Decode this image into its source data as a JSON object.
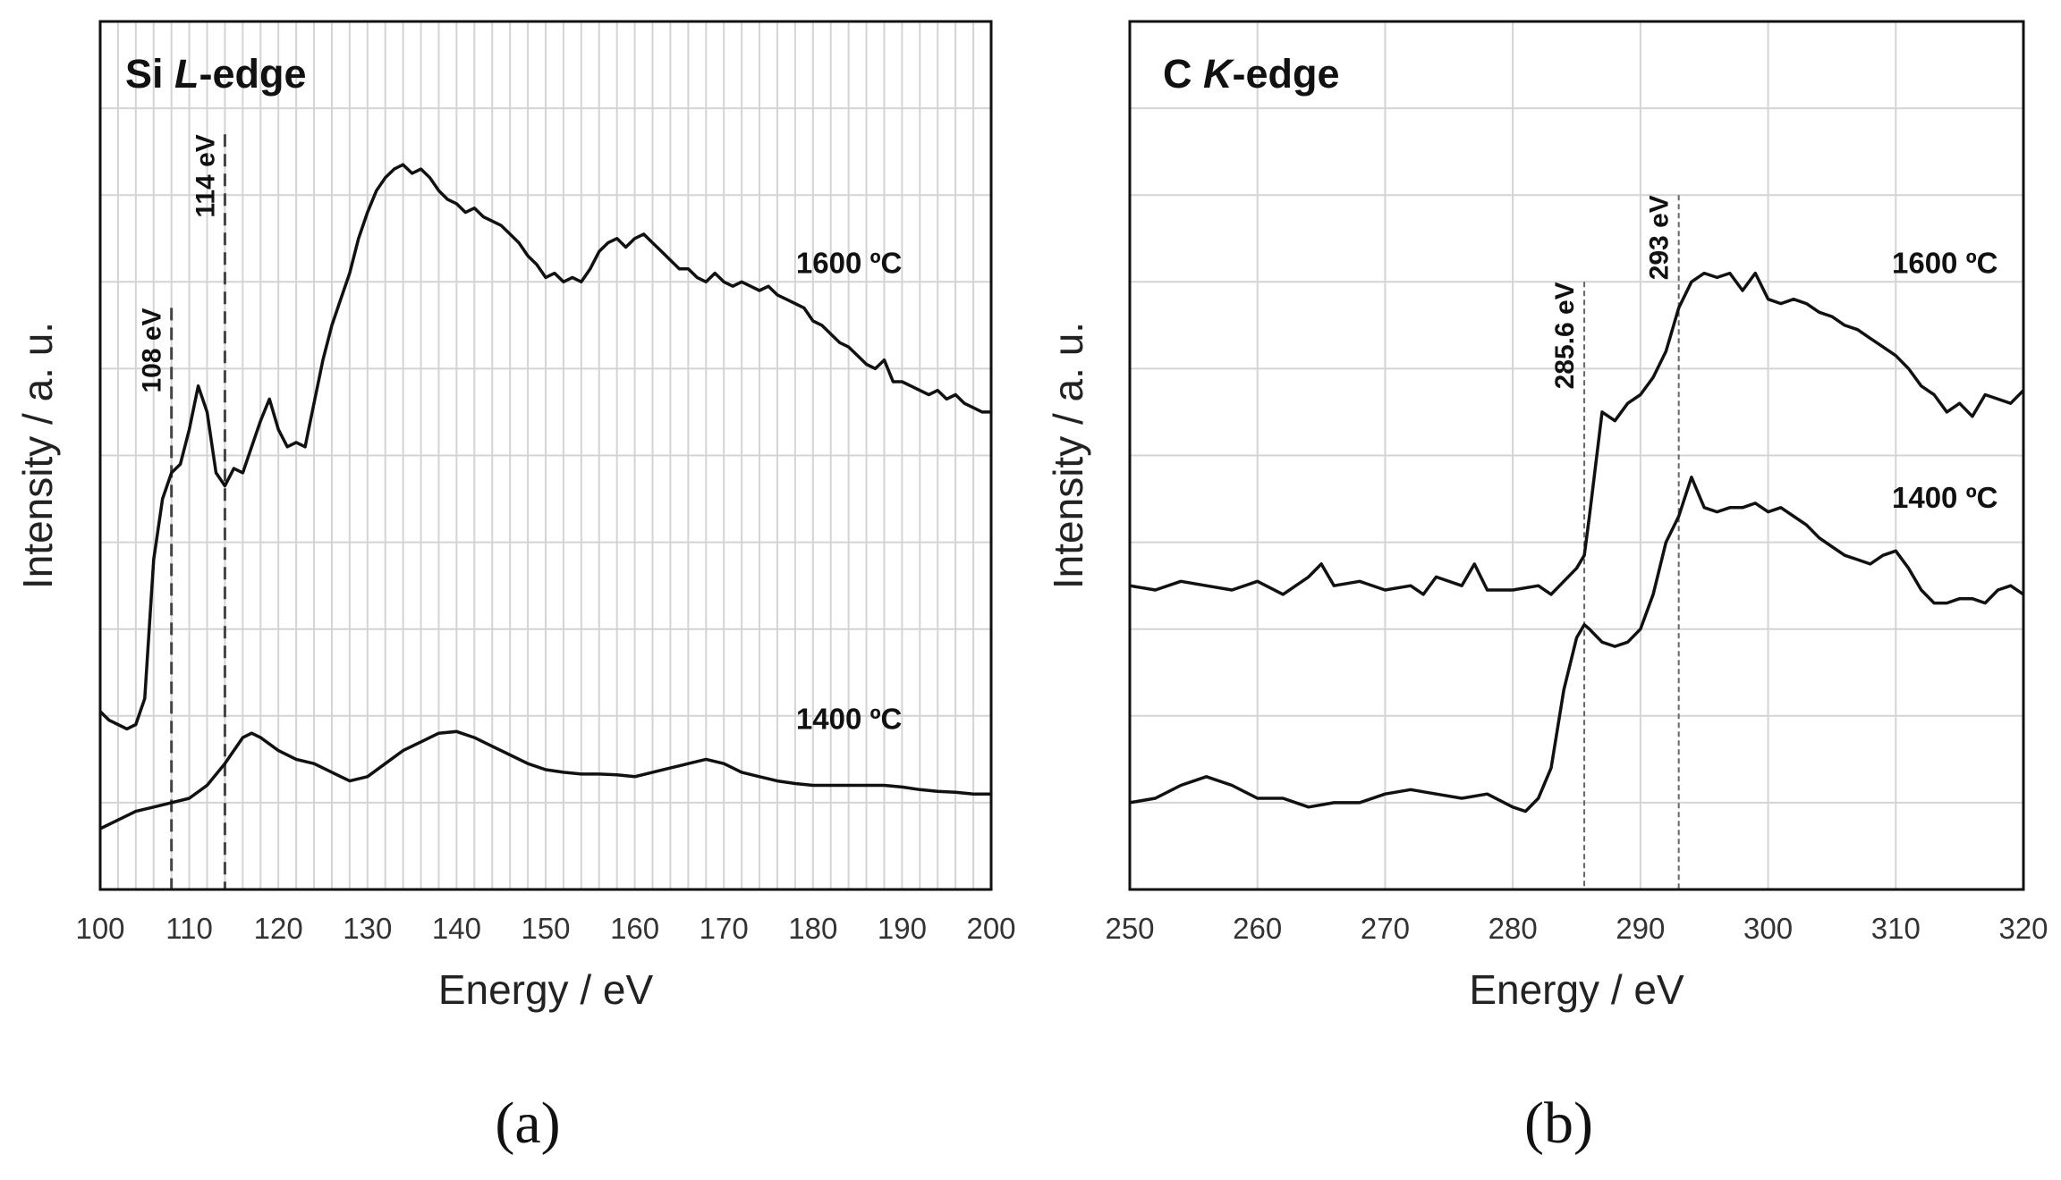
{
  "chart_data": [
    {
      "id": "a",
      "type": "line",
      "panel_label": "(a)",
      "title": "Si L-edge",
      "title_prefix": "Si ",
      "title_italic": "L",
      "title_suffix": "-edge",
      "xlabel": "Energy  / eV",
      "ylabel": "Intensity / a. u.",
      "xlim": [
        100,
        200
      ],
      "ylim": [
        0,
        10
      ],
      "xticks": [
        100,
        110,
        120,
        130,
        140,
        150,
        160,
        170,
        180,
        190,
        200
      ],
      "minor_x_step": 2,
      "y_gridlines": 10,
      "series": [
        {
          "name": "1600 ºC",
          "label_pos": [
            190,
            7.1
          ],
          "x": [
            100,
            101,
            102,
            103,
            104,
            105,
            106,
            107,
            108,
            109,
            110,
            111,
            112,
            113,
            114,
            115,
            116,
            117,
            118,
            119,
            120,
            121,
            122,
            123,
            124,
            125,
            126,
            127,
            128,
            129,
            130,
            131,
            132,
            133,
            134,
            135,
            136,
            137,
            138,
            139,
            140,
            141,
            142,
            143,
            144,
            145,
            146,
            147,
            148,
            149,
            150,
            151,
            152,
            153,
            154,
            155,
            156,
            157,
            158,
            159,
            160,
            161,
            162,
            163,
            164,
            165,
            166,
            167,
            168,
            169,
            170,
            171,
            172,
            173,
            174,
            175,
            176,
            177,
            178,
            179,
            180,
            181,
            182,
            183,
            184,
            185,
            186,
            187,
            188,
            189,
            190,
            191,
            192,
            193,
            194,
            195,
            196,
            197,
            198,
            199,
            200
          ],
          "values": [
            2.05,
            1.95,
            1.9,
            1.85,
            1.9,
            2.2,
            3.8,
            4.5,
            4.8,
            4.9,
            5.3,
            5.8,
            5.5,
            4.8,
            4.65,
            4.85,
            4.8,
            5.1,
            5.4,
            5.65,
            5.3,
            5.1,
            5.15,
            5.1,
            5.6,
            6.1,
            6.5,
            6.8,
            7.1,
            7.5,
            7.8,
            8.05,
            8.2,
            8.3,
            8.35,
            8.25,
            8.3,
            8.2,
            8.05,
            7.95,
            7.9,
            7.8,
            7.85,
            7.75,
            7.7,
            7.65,
            7.55,
            7.45,
            7.3,
            7.2,
            7.05,
            7.1,
            7.0,
            7.05,
            7.0,
            7.15,
            7.35,
            7.45,
            7.5,
            7.4,
            7.5,
            7.55,
            7.45,
            7.35,
            7.25,
            7.15,
            7.15,
            7.05,
            7.0,
            7.1,
            7.0,
            6.95,
            7.0,
            6.95,
            6.9,
            6.95,
            6.85,
            6.8,
            6.75,
            6.7,
            6.55,
            6.5,
            6.4,
            6.3,
            6.25,
            6.15,
            6.05,
            6.0,
            6.1,
            5.85,
            5.85,
            5.8,
            5.75,
            5.7,
            5.75,
            5.65,
            5.7,
            5.6,
            5.55,
            5.5,
            5.5
          ]
        },
        {
          "name": "1400 ºC",
          "label_pos": [
            190,
            1.85
          ],
          "x": [
            100,
            102,
            104,
            106,
            108,
            110,
            112,
            114,
            115,
            116,
            117,
            118,
            120,
            122,
            124,
            126,
            128,
            130,
            132,
            134,
            136,
            138,
            140,
            142,
            144,
            146,
            148,
            150,
            152,
            154,
            156,
            158,
            160,
            162,
            164,
            166,
            168,
            170,
            172,
            174,
            176,
            178,
            180,
            182,
            184,
            186,
            188,
            190,
            192,
            194,
            196,
            198,
            200
          ],
          "values": [
            0.7,
            0.8,
            0.9,
            0.95,
            1.0,
            1.05,
            1.2,
            1.45,
            1.6,
            1.75,
            1.8,
            1.75,
            1.6,
            1.5,
            1.45,
            1.35,
            1.25,
            1.3,
            1.45,
            1.6,
            1.7,
            1.8,
            1.82,
            1.75,
            1.65,
            1.55,
            1.45,
            1.38,
            1.35,
            1.33,
            1.33,
            1.32,
            1.3,
            1.35,
            1.4,
            1.45,
            1.5,
            1.45,
            1.35,
            1.3,
            1.25,
            1.22,
            1.2,
            1.2,
            1.2,
            1.2,
            1.2,
            1.18,
            1.15,
            1.13,
            1.12,
            1.1,
            1.1
          ]
        }
      ],
      "annotations": [
        {
          "x": 108,
          "text": "108 eV",
          "y_top": 6.7
        },
        {
          "x": 114,
          "text": "114 eV",
          "y_top": 8.7
        }
      ]
    },
    {
      "id": "b",
      "type": "line",
      "panel_label": "(b)",
      "title": "C K-edge",
      "title_prefix": "C ",
      "title_italic": "K",
      "title_suffix": "-edge",
      "xlabel": "Energy  / eV",
      "ylabel": "Intensity / a. u.",
      "xlim": [
        250,
        320
      ],
      "ylim": [
        0,
        10
      ],
      "xticks": [
        250,
        260,
        270,
        280,
        290,
        300,
        310,
        320
      ],
      "minor_x_step": 0,
      "y_gridlines": 10,
      "series": [
        {
          "name": "1600 ºC",
          "label_pos": [
            318,
            7.1
          ],
          "x": [
            250,
            252,
            254,
            256,
            258,
            260,
            262,
            264,
            265,
            266,
            268,
            270,
            272,
            273,
            274,
            276,
            277,
            278,
            280,
            282,
            283,
            284,
            285,
            285.6,
            286,
            287,
            288,
            289,
            290,
            291,
            292,
            293,
            294,
            295,
            296,
            297,
            298,
            299,
            300,
            301,
            302,
            303,
            304,
            305,
            306,
            307,
            308,
            309,
            310,
            311,
            312,
            313,
            314,
            315,
            316,
            317,
            318,
            319,
            320
          ],
          "values": [
            3.5,
            3.45,
            3.55,
            3.5,
            3.45,
            3.55,
            3.4,
            3.6,
            3.75,
            3.5,
            3.55,
            3.45,
            3.5,
            3.4,
            3.6,
            3.5,
            3.75,
            3.45,
            3.45,
            3.5,
            3.4,
            3.55,
            3.7,
            3.85,
            4.3,
            5.5,
            5.4,
            5.6,
            5.7,
            5.9,
            6.2,
            6.7,
            7.0,
            7.1,
            7.05,
            7.1,
            6.9,
            7.1,
            6.8,
            6.75,
            6.8,
            6.75,
            6.65,
            6.6,
            6.5,
            6.45,
            6.35,
            6.25,
            6.15,
            6.0,
            5.8,
            5.7,
            5.5,
            5.6,
            5.45,
            5.7,
            5.65,
            5.6,
            5.75
          ]
        },
        {
          "name": "1400 ºC",
          "label_pos": [
            318,
            4.4
          ],
          "x": [
            250,
            252,
            254,
            256,
            258,
            260,
            262,
            264,
            266,
            268,
            270,
            272,
            274,
            276,
            278,
            280,
            281,
            282,
            283,
            284,
            285,
            285.6,
            286,
            287,
            288,
            289,
            290,
            291,
            292,
            293,
            294,
            295,
            296,
            297,
            298,
            299,
            300,
            301,
            302,
            303,
            304,
            305,
            306,
            307,
            308,
            309,
            310,
            311,
            312,
            313,
            314,
            315,
            316,
            317,
            318,
            319,
            320
          ],
          "values": [
            1.0,
            1.05,
            1.2,
            1.3,
            1.2,
            1.05,
            1.05,
            0.95,
            1.0,
            1.0,
            1.1,
            1.15,
            1.1,
            1.05,
            1.1,
            0.95,
            0.9,
            1.05,
            1.4,
            2.3,
            2.9,
            3.05,
            3.0,
            2.85,
            2.8,
            2.85,
            3.0,
            3.4,
            4.0,
            4.3,
            4.75,
            4.4,
            4.35,
            4.4,
            4.4,
            4.45,
            4.35,
            4.4,
            4.3,
            4.2,
            4.05,
            3.95,
            3.85,
            3.8,
            3.75,
            3.85,
            3.9,
            3.7,
            3.45,
            3.3,
            3.3,
            3.35,
            3.35,
            3.3,
            3.45,
            3.5,
            3.4
          ]
        }
      ],
      "annotations": [
        {
          "x": 285.6,
          "text": "285.6 eV",
          "y_top": 7.0
        },
        {
          "x": 293,
          "text": "293 eV",
          "y_top": 8.0
        }
      ]
    }
  ]
}
